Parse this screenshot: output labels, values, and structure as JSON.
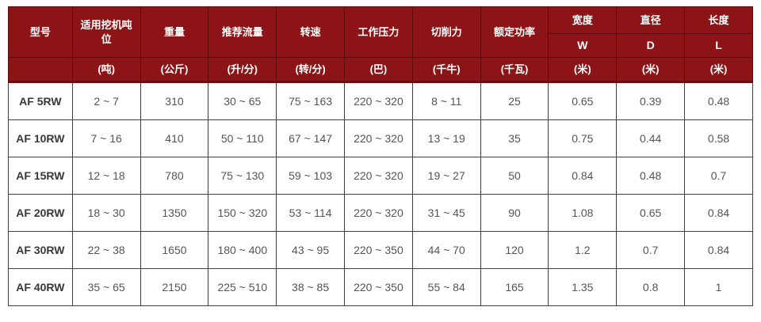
{
  "colors": {
    "header_bg": "#8c1416",
    "header_divider": "#5e0a0c",
    "header_bottom_strip": "#6e0b0e",
    "body_border": "#3f3f3f",
    "body_text": "#545454",
    "header_text": "#ffffff"
  },
  "table": {
    "columns": [
      {
        "title": "型号",
        "unit": ""
      },
      {
        "title": "适用挖机吨位",
        "unit": "(吨)"
      },
      {
        "title": "重量",
        "unit": "(公斤)"
      },
      {
        "title": "推荐流量",
        "unit": "(升/分)"
      },
      {
        "title": "转速",
        "unit": "(转/分)"
      },
      {
        "title": "工作压力",
        "unit": "(巴)"
      },
      {
        "title": "切削力",
        "unit": "(千牛)"
      },
      {
        "title": "额定功率",
        "unit": "(千瓦)"
      },
      {
        "title": "宽度",
        "symbol": "W",
        "unit": "(米)"
      },
      {
        "title": "直径",
        "symbol": "D",
        "unit": "(米)"
      },
      {
        "title": "长度",
        "symbol": "L",
        "unit": "(米)"
      }
    ],
    "rows": [
      {
        "model": "AF 5RW",
        "values": [
          "2 ~ 7",
          "310",
          "30 ~ 65",
          "75 ~ 163",
          "220 ~ 320",
          "8 ~ 11",
          "25",
          "0.65",
          "0.39",
          "0.48"
        ]
      },
      {
        "model": "AF 10RW",
        "values": [
          "7 ~ 16",
          "410",
          "50 ~ 110",
          "67 ~ 147",
          "220 ~ 320",
          "13 ~ 19",
          "35",
          "0.75",
          "0.44",
          "0.58"
        ]
      },
      {
        "model": "AF 15RW",
        "values": [
          "12 ~ 18",
          "780",
          "75 ~ 130",
          "59 ~ 103",
          "220 ~ 320",
          "19 ~ 27",
          "50",
          "0.84",
          "0.48",
          "0.7"
        ]
      },
      {
        "model": "AF 20RW",
        "values": [
          "18 ~ 30",
          "1350",
          "150 ~ 320",
          "53 ~ 114",
          "220 ~ 320",
          "31 ~ 45",
          "90",
          "1.08",
          "0.65",
          "0.84"
        ]
      },
      {
        "model": "AF 30RW",
        "values": [
          "22 ~ 38",
          "1650",
          "180 ~ 400",
          "43 ~ 95",
          "220 ~ 350",
          "44 ~ 70",
          "120",
          "1.2",
          "0.7",
          "0.84"
        ]
      },
      {
        "model": "AF 40RW",
        "values": [
          "35 ~ 65",
          "2150",
          "225 ~ 510",
          "38 ~ 85",
          "220 ~ 350",
          "55 ~ 84",
          "165",
          "1.35",
          "0.8",
          "1"
        ]
      }
    ]
  },
  "chart_data": {
    "type": "table",
    "title": "",
    "columns": [
      "型号",
      "适用挖机吨位 (吨)",
      "重量 (公斤)",
      "推荐流量 (升/分)",
      "转速 (转/分)",
      "工作压力 (巴)",
      "切削力 (千牛)",
      "额定功率 (千瓦)",
      "宽度 W (米)",
      "直径 D (米)",
      "长度 L (米)"
    ],
    "rows": [
      [
        "AF 5RW",
        "2 ~ 7",
        "310",
        "30 ~ 65",
        "75 ~ 163",
        "220 ~ 320",
        "8 ~ 11",
        "25",
        "0.65",
        "0.39",
        "0.48"
      ],
      [
        "AF 10RW",
        "7 ~ 16",
        "410",
        "50 ~ 110",
        "67 ~ 147",
        "220 ~ 320",
        "13 ~ 19",
        "35",
        "0.75",
        "0.44",
        "0.58"
      ],
      [
        "AF 15RW",
        "12 ~ 18",
        "780",
        "75 ~ 130",
        "59 ~ 103",
        "220 ~ 320",
        "19 ~ 27",
        "50",
        "0.84",
        "0.48",
        "0.7"
      ],
      [
        "AF 20RW",
        "18 ~ 30",
        "1350",
        "150 ~ 320",
        "53 ~ 114",
        "220 ~ 320",
        "31 ~ 45",
        "90",
        "1.08",
        "0.65",
        "0.84"
      ],
      [
        "AF 30RW",
        "22 ~ 38",
        "1650",
        "180 ~ 400",
        "43 ~ 95",
        "220 ~ 350",
        "44 ~ 70",
        "120",
        "1.2",
        "0.7",
        "0.84"
      ],
      [
        "AF 40RW",
        "35 ~ 65",
        "2150",
        "225 ~ 510",
        "38 ~ 85",
        "220 ~ 350",
        "55 ~ 84",
        "165",
        "1.35",
        "0.8",
        "1"
      ]
    ]
  }
}
